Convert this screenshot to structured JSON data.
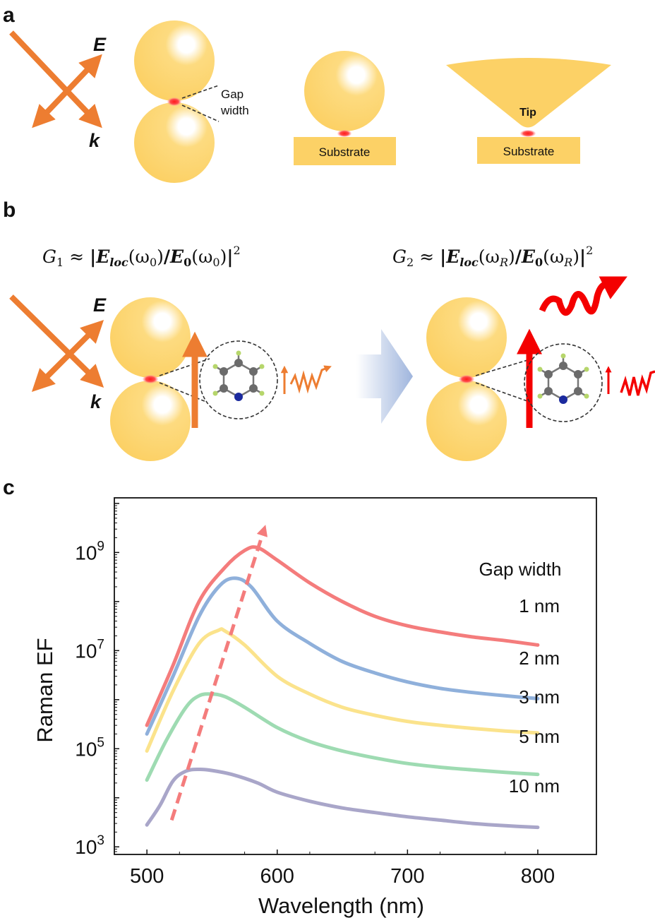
{
  "panels": {
    "a": "a",
    "b": "b",
    "c": "c"
  },
  "panel_a": {
    "field_label": "E",
    "wavevector_label": "k",
    "gap_label_line1": "Gap",
    "gap_label_line2": "width",
    "substrate_label_1": "Substrate",
    "substrate_label_2": "Substrate",
    "tip_label": "Tip"
  },
  "panel_b": {
    "field_label": "E",
    "wavevector_label": "k",
    "g1": {
      "sym": "G",
      "sub": "1",
      "approx": "≈",
      "open": "|",
      "eloc": "E",
      "eloc_sub": "loc",
      "arg1": "(ω",
      "arg1_sub": "0",
      "arg1_close": ")",
      "slash": "/",
      "e0": "E",
      "e0_sub": "0",
      "arg2": "(ω",
      "arg2_sub": "0",
      "arg2_close": ")",
      "close": "|",
      "power": "2"
    },
    "g2": {
      "sym": "G",
      "sub": "2",
      "approx": "≈",
      "open": "|",
      "eloc": "E",
      "eloc_sub": "loc",
      "arg1": "(ω",
      "arg1_sub": "R",
      "arg1_close": ")",
      "slash": "/",
      "e0": "E",
      "e0_sub": "0",
      "arg2": "(ω",
      "arg2_sub": "R",
      "arg2_close": ")",
      "close": "|",
      "power": "2"
    }
  },
  "colors": {
    "gold": "#FDD36B",
    "orange_arrow": "#ED7D31",
    "hotspot": "#FF2B2B",
    "red_arrow": "#F40000"
  },
  "chart_data": {
    "type": "line",
    "ylabel": "Raman EF",
    "xlabel": "Wavelength (nm)",
    "xlim": [
      475,
      845
    ],
    "ylim": [
      700,
      13000000000
    ],
    "yscale": "log",
    "x_ticks": [
      "500",
      "600",
      "700",
      "800"
    ],
    "x_tick_values": [
      500,
      600,
      700,
      800
    ],
    "y_ticks": [
      {
        "base": "10",
        "exp": "9",
        "value": 1000000000
      },
      {
        "base": "10",
        "exp": "7",
        "value": 10000000
      },
      {
        "base": "10",
        "exp": "5",
        "value": 100000
      },
      {
        "base": "10",
        "exp": "3",
        "value": 1000
      }
    ],
    "legend_title": "Gap width",
    "series": [
      {
        "name": "1 nm",
        "color": "#F47C7C",
        "x": [
          500,
          520,
          540,
          560,
          575,
          585,
          600,
          625,
          650,
          675,
          700,
          725,
          750,
          775,
          800
        ],
        "y": [
          300000,
          5000000,
          100000000,
          500000000,
          1100000000,
          1250000000,
          700000000,
          240000000,
          100000000,
          50000000,
          32000000,
          24000000,
          19000000,
          16000000,
          13000000
        ]
      },
      {
        "name": "2 nm",
        "color": "#8FB0DB",
        "x": [
          500,
          520,
          540,
          555,
          567,
          580,
          600,
          625,
          650,
          675,
          700,
          725,
          750,
          775,
          800
        ],
        "y": [
          200000,
          3000000,
          50000000,
          200000000,
          300000000,
          200000000,
          40000000,
          14000000,
          6000000,
          3500000,
          2300000,
          1700000,
          1400000,
          1200000,
          1050000
        ]
      },
      {
        "name": "3 nm",
        "color": "#FBE38C",
        "x": [
          500,
          520,
          540,
          555,
          560,
          575,
          600,
          625,
          650,
          675,
          700,
          725,
          750,
          775,
          800
        ],
        "y": [
          90000,
          1500000,
          14000000,
          26000000,
          25000000,
          13000000,
          3000000,
          1300000,
          700000,
          480000,
          360000,
          300000,
          260000,
          230000,
          210000
        ]
      },
      {
        "name": "5 nm",
        "color": "#9EDBB2",
        "x": [
          500,
          515,
          530,
          540,
          550,
          560,
          575,
          600,
          625,
          650,
          675,
          700,
          725,
          750,
          775,
          800
        ],
        "y": [
          23000,
          150000,
          700000,
          1200000,
          1300000,
          1150000,
          700000,
          270000,
          140000,
          90000,
          65000,
          50000,
          42000,
          37000,
          33000,
          30000
        ]
      },
      {
        "name": "10 nm",
        "color": "#A9A6C9",
        "x": [
          500,
          510,
          520,
          530,
          540,
          550,
          565,
          585,
          600,
          625,
          650,
          675,
          700,
          725,
          750,
          775,
          800
        ],
        "y": [
          2800,
          7000,
          22000,
          35000,
          38000,
          36000,
          30000,
          20000,
          13000,
          8500,
          6200,
          5000,
          4100,
          3500,
          3000,
          2700,
          2500
        ]
      }
    ],
    "trend_arrow": {
      "color": "#F47C7C",
      "x": [
        519,
        590
      ],
      "y": [
        3500,
        3000000000
      ]
    }
  }
}
